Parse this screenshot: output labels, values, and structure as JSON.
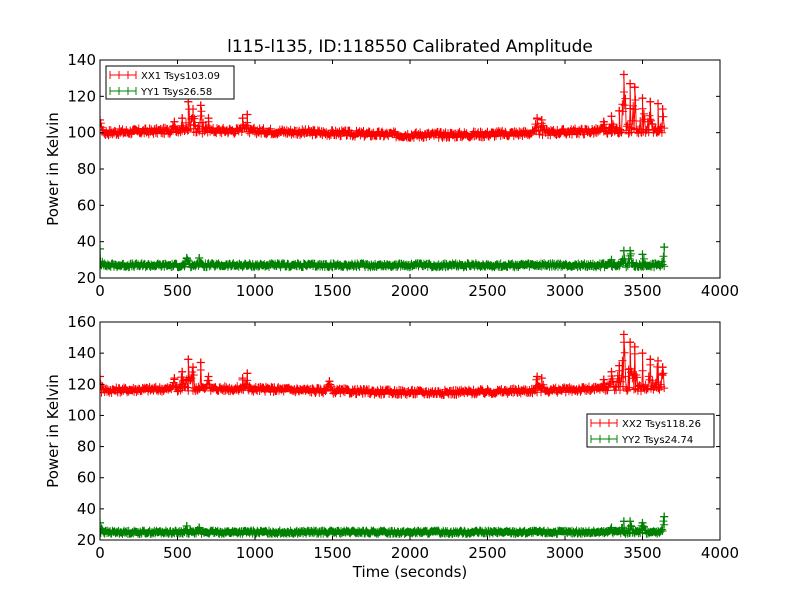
{
  "chart_data": [
    {
      "type": "line",
      "title": "l115-l135, ID:118550 Calibrated Amplitude",
      "xlabel": "",
      "ylabel": "Power in Kelvin",
      "xlim": [
        0,
        4000
      ],
      "ylim": [
        20,
        140
      ],
      "xticks": [
        "0",
        "500",
        "1000",
        "1500",
        "2000",
        "2500",
        "3000",
        "3500",
        "4000"
      ],
      "yticks": [
        "20",
        "40",
        "60",
        "80",
        "100",
        "120",
        "140"
      ],
      "legend_position": "upper-left",
      "series": [
        {
          "name": "XX1 Tsys103.09",
          "color": "#ff0000",
          "baseline": 100,
          "spikes": [
            [
              0,
              107
            ],
            [
              480,
              106
            ],
            [
              530,
              108
            ],
            [
              570,
              117
            ],
            [
              600,
              113
            ],
            [
              650,
              115
            ],
            [
              700,
              108
            ],
            [
              920,
              108
            ],
            [
              950,
              110
            ],
            [
              2820,
              108
            ],
            [
              2850,
              107
            ],
            [
              3250,
              106
            ],
            [
              3300,
              109
            ],
            [
              3350,
              112
            ],
            [
              3380,
              132
            ],
            [
              3420,
              127
            ],
            [
              3450,
              125
            ],
            [
              3500,
              119
            ],
            [
              3550,
              117
            ],
            [
              3600,
              116
            ],
            [
              3630,
              113
            ]
          ]
        },
        {
          "name": "YY1 Tsys26.58",
          "color": "#008000",
          "baseline": 27,
          "spikes": [
            [
              0,
              36
            ],
            [
              560,
              31
            ],
            [
              640,
              31
            ],
            [
              3300,
              30
            ],
            [
              3380,
              35
            ],
            [
              3420,
              35
            ],
            [
              3500,
              33
            ],
            [
              3640,
              37
            ]
          ]
        }
      ]
    },
    {
      "type": "line",
      "title": "",
      "xlabel": "Time (seconds)",
      "ylabel": "Power in Kelvin",
      "xlim": [
        0,
        4000
      ],
      "ylim": [
        20,
        160
      ],
      "xticks": [
        "0",
        "500",
        "1000",
        "1500",
        "2000",
        "2500",
        "3000",
        "3500",
        "4000"
      ],
      "yticks": [
        "20",
        "40",
        "60",
        "80",
        "100",
        "120",
        "140",
        "160"
      ],
      "legend_position": "center-right",
      "series": [
        {
          "name": "XX2 Tsys118.26",
          "color": "#ff0000",
          "baseline": 116,
          "spikes": [
            [
              0,
              125
            ],
            [
              480,
              124
            ],
            [
              530,
              128
            ],
            [
              570,
              136
            ],
            [
              600,
              131
            ],
            [
              650,
              134
            ],
            [
              700,
              125
            ],
            [
              920,
              124
            ],
            [
              950,
              127
            ],
            [
              1480,
              122
            ],
            [
              2820,
              125
            ],
            [
              2850,
              124
            ],
            [
              3250,
              123
            ],
            [
              3300,
              128
            ],
            [
              3350,
              132
            ],
            [
              3380,
              152
            ],
            [
              3420,
              147
            ],
            [
              3450,
              144
            ],
            [
              3500,
              140
            ],
            [
              3550,
              136
            ],
            [
              3600,
              135
            ],
            [
              3630,
              131
            ]
          ]
        },
        {
          "name": "YY2 Tsys24.74",
          "color": "#008000",
          "baseline": 25,
          "spikes": [
            [
              0,
              31
            ],
            [
              560,
              29
            ],
            [
              640,
              28
            ],
            [
              3300,
              28
            ],
            [
              3380,
              32
            ],
            [
              3420,
              32
            ],
            [
              3500,
              31
            ],
            [
              3640,
              35
            ]
          ]
        }
      ]
    }
  ]
}
